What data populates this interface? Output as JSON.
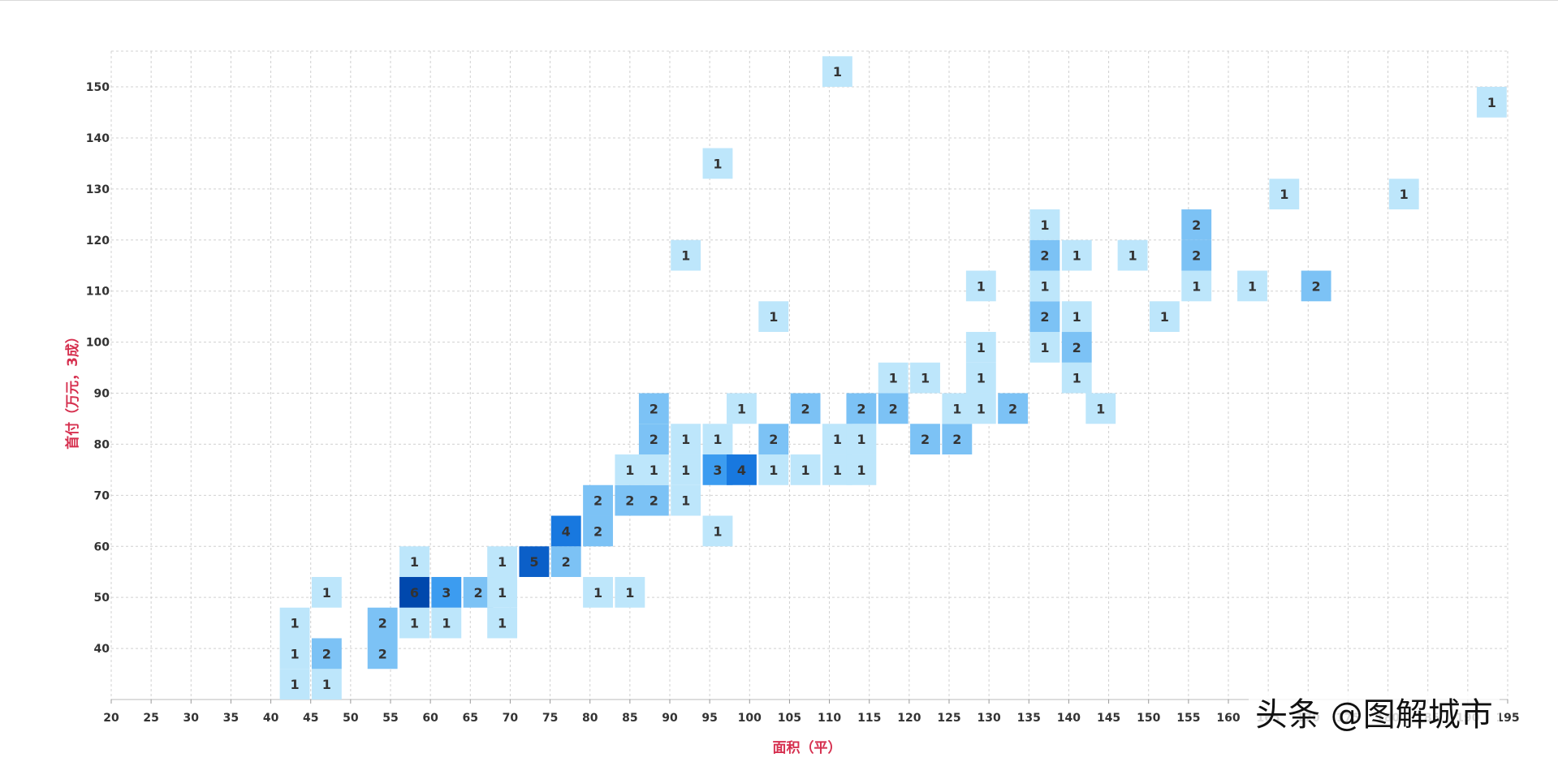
{
  "colors": {
    "axis_title": "#d6304f",
    "grid": "#d0d0d0",
    "bin_1": "#bde6fb",
    "bin_2": "#7cc2f5",
    "bin_3": "#3c9cf0",
    "bin_4": "#1878df",
    "bin_5": "#0b5fc8",
    "bin_6": "#0048ad"
  },
  "watermark": "头条 @图解城市",
  "chart_data": {
    "type": "heatmap",
    "title": "",
    "xlabel": "面积（平）",
    "ylabel": "首付（万元，3成）",
    "xlim": [
      20,
      195
    ],
    "ylim": [
      30,
      157
    ],
    "x_ticks": [
      20,
      25,
      30,
      35,
      40,
      45,
      50,
      55,
      60,
      65,
      70,
      75,
      80,
      85,
      90,
      95,
      100,
      105,
      110,
      115,
      120,
      125,
      130,
      135,
      140,
      145,
      150,
      155,
      160,
      165,
      170,
      175,
      180,
      185,
      190,
      195
    ],
    "x_tick_labels": [
      "20",
      "25",
      "30",
      "35",
      "40",
      "45",
      "50",
      "55",
      "60",
      "65",
      "70",
      "75",
      "80",
      "85",
      "90",
      "95",
      "100",
      "105",
      "110",
      "115",
      "120",
      "125",
      "130",
      "135",
      "140",
      "145",
      "150",
      "155",
      "160",
      "165",
      "170",
      "175",
      "180",
      "185",
      "190",
      "195"
    ],
    "y_ticks": [
      40,
      50,
      60,
      70,
      80,
      90,
      100,
      110,
      120,
      130,
      140,
      150
    ],
    "y_tick_labels": [
      "40",
      "50",
      "60",
      "70",
      "80",
      "90",
      "100",
      "110",
      "120",
      "130",
      "140",
      "150"
    ],
    "grid": true,
    "bin_width": 3.75,
    "bin_height": 6,
    "cells": [
      {
        "x": 43,
        "y": 33,
        "count": 1
      },
      {
        "x": 47,
        "y": 33,
        "count": 1
      },
      {
        "x": 43,
        "y": 39,
        "count": 1
      },
      {
        "x": 47,
        "y": 39,
        "count": 2
      },
      {
        "x": 54,
        "y": 39,
        "count": 2
      },
      {
        "x": 43,
        "y": 45,
        "count": 1
      },
      {
        "x": 54,
        "y": 45,
        "count": 2
      },
      {
        "x": 58,
        "y": 45,
        "count": 1
      },
      {
        "x": 62,
        "y": 45,
        "count": 1
      },
      {
        "x": 69,
        "y": 45,
        "count": 1
      },
      {
        "x": 47,
        "y": 51,
        "count": 1
      },
      {
        "x": 58,
        "y": 51,
        "count": 6
      },
      {
        "x": 62,
        "y": 51,
        "count": 3
      },
      {
        "x": 66,
        "y": 51,
        "count": 2
      },
      {
        "x": 69,
        "y": 51,
        "count": 1
      },
      {
        "x": 81,
        "y": 51,
        "count": 1
      },
      {
        "x": 85,
        "y": 51,
        "count": 1
      },
      {
        "x": 58,
        "y": 57,
        "count": 1
      },
      {
        "x": 69,
        "y": 57,
        "count": 1
      },
      {
        "x": 73,
        "y": 57,
        "count": 5
      },
      {
        "x": 77,
        "y": 57,
        "count": 2
      },
      {
        "x": 77,
        "y": 63,
        "count": 4
      },
      {
        "x": 81,
        "y": 63,
        "count": 2
      },
      {
        "x": 96,
        "y": 63,
        "count": 1
      },
      {
        "x": 81,
        "y": 69,
        "count": 2
      },
      {
        "x": 85,
        "y": 69,
        "count": 2
      },
      {
        "x": 88,
        "y": 69,
        "count": 2
      },
      {
        "x": 92,
        "y": 69,
        "count": 1
      },
      {
        "x": 85,
        "y": 75,
        "count": 1
      },
      {
        "x": 88,
        "y": 75,
        "count": 1
      },
      {
        "x": 92,
        "y": 75,
        "count": 1
      },
      {
        "x": 96,
        "y": 75,
        "count": 3
      },
      {
        "x": 99,
        "y": 75,
        "count": 4
      },
      {
        "x": 103,
        "y": 75,
        "count": 1
      },
      {
        "x": 107,
        "y": 75,
        "count": 1
      },
      {
        "x": 111,
        "y": 75,
        "count": 1
      },
      {
        "x": 114,
        "y": 75,
        "count": 1
      },
      {
        "x": 88,
        "y": 81,
        "count": 2
      },
      {
        "x": 92,
        "y": 81,
        "count": 1
      },
      {
        "x": 96,
        "y": 81,
        "count": 1
      },
      {
        "x": 103,
        "y": 81,
        "count": 2
      },
      {
        "x": 111,
        "y": 81,
        "count": 1
      },
      {
        "x": 114,
        "y": 81,
        "count": 1
      },
      {
        "x": 122,
        "y": 81,
        "count": 2
      },
      {
        "x": 126,
        "y": 81,
        "count": 2
      },
      {
        "x": 88,
        "y": 87,
        "count": 2
      },
      {
        "x": 99,
        "y": 87,
        "count": 1
      },
      {
        "x": 107,
        "y": 87,
        "count": 2
      },
      {
        "x": 114,
        "y": 87,
        "count": 2
      },
      {
        "x": 118,
        "y": 87,
        "count": 2
      },
      {
        "x": 126,
        "y": 87,
        "count": 1
      },
      {
        "x": 129,
        "y": 87,
        "count": 1
      },
      {
        "x": 133,
        "y": 87,
        "count": 2
      },
      {
        "x": 144,
        "y": 87,
        "count": 1
      },
      {
        "x": 118,
        "y": 93,
        "count": 1
      },
      {
        "x": 122,
        "y": 93,
        "count": 1
      },
      {
        "x": 129,
        "y": 93,
        "count": 1
      },
      {
        "x": 141,
        "y": 93,
        "count": 1
      },
      {
        "x": 129,
        "y": 99,
        "count": 1
      },
      {
        "x": 137,
        "y": 99,
        "count": 1
      },
      {
        "x": 141,
        "y": 99,
        "count": 2
      },
      {
        "x": 103,
        "y": 105,
        "count": 1
      },
      {
        "x": 137,
        "y": 105,
        "count": 2
      },
      {
        "x": 141,
        "y": 105,
        "count": 1
      },
      {
        "x": 152,
        "y": 105,
        "count": 1
      },
      {
        "x": 129,
        "y": 111,
        "count": 1
      },
      {
        "x": 137,
        "y": 111,
        "count": 1
      },
      {
        "x": 156,
        "y": 111,
        "count": 1
      },
      {
        "x": 163,
        "y": 111,
        "count": 1
      },
      {
        "x": 171,
        "y": 111,
        "count": 2
      },
      {
        "x": 92,
        "y": 117,
        "count": 1
      },
      {
        "x": 137,
        "y": 117,
        "count": 2
      },
      {
        "x": 141,
        "y": 117,
        "count": 1
      },
      {
        "x": 148,
        "y": 117,
        "count": 1
      },
      {
        "x": 156,
        "y": 117,
        "count": 2
      },
      {
        "x": 137,
        "y": 123,
        "count": 1
      },
      {
        "x": 156,
        "y": 123,
        "count": 2
      },
      {
        "x": 167,
        "y": 129,
        "count": 1
      },
      {
        "x": 182,
        "y": 129,
        "count": 1
      },
      {
        "x": 96,
        "y": 135,
        "count": 1
      },
      {
        "x": 193,
        "y": 147,
        "count": 1
      },
      {
        "x": 111,
        "y": 153,
        "count": 1
      }
    ]
  }
}
